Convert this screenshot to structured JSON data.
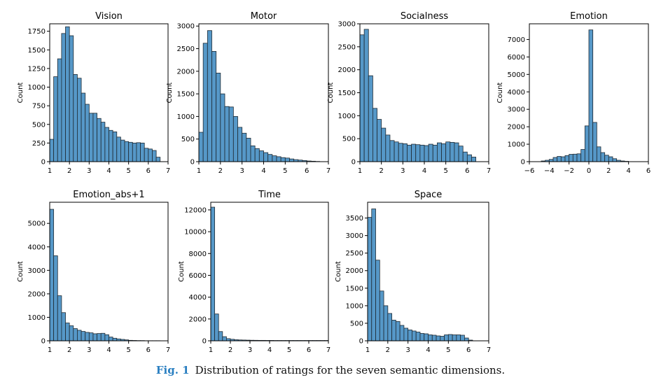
{
  "chart_data": [
    {
      "type": "bar",
      "title": "Vision",
      "ylabel": "Count",
      "xlim": [
        1,
        7
      ],
      "ylim": [
        0,
        1850
      ],
      "bin_start": 1.0,
      "bin_width": 0.2,
      "values": [
        300,
        1140,
        1380,
        1720,
        1810,
        1690,
        1170,
        1120,
        920,
        770,
        650,
        650,
        580,
        530,
        460,
        420,
        400,
        330,
        290,
        270,
        260,
        250,
        255,
        250,
        180,
        170,
        150,
        60
      ],
      "xticks": [
        1,
        2,
        3,
        4,
        5,
        6,
        7
      ],
      "yticks": [
        0,
        250,
        500,
        750,
        1000,
        1250,
        1500,
        1750
      ]
    },
    {
      "type": "bar",
      "title": "Motor",
      "ylabel": "Count",
      "xlim": [
        1,
        7
      ],
      "ylim": [
        0,
        3050
      ],
      "bin_start": 1.0,
      "bin_width": 0.2,
      "values": [
        650,
        2620,
        2900,
        2440,
        1960,
        1500,
        1220,
        1210,
        1000,
        760,
        630,
        520,
        350,
        290,
        240,
        200,
        160,
        130,
        110,
        90,
        80,
        60,
        45,
        35,
        25,
        15,
        10,
        5
      ],
      "xticks": [
        1,
        2,
        3,
        4,
        5,
        6,
        7
      ],
      "yticks": [
        0,
        500,
        1000,
        1500,
        2000,
        2500,
        3000
      ]
    },
    {
      "type": "bar",
      "title": "Socialness",
      "ylabel": "Count",
      "xlim": [
        1,
        7
      ],
      "ylim": [
        0,
        3000
      ],
      "bin_start": 1.0,
      "bin_width": 0.2,
      "values": [
        2760,
        2880,
        1870,
        1160,
        920,
        730,
        580,
        460,
        430,
        400,
        390,
        360,
        380,
        370,
        360,
        350,
        380,
        360,
        410,
        390,
        430,
        420,
        410,
        340,
        210,
        150,
        100
      ],
      "xticks": [
        1,
        2,
        3,
        4,
        5,
        6,
        7
      ],
      "yticks": [
        0,
        500,
        1000,
        1500,
        2000,
        2500,
        3000
      ]
    },
    {
      "type": "bar",
      "title": "Emotion",
      "ylabel": "Count",
      "xlim": [
        -6,
        6
      ],
      "ylim": [
        0,
        7900
      ],
      "bin_start": -4.8,
      "bin_width": 0.4,
      "values": [
        40,
        80,
        130,
        240,
        300,
        280,
        350,
        420,
        430,
        450,
        700,
        2050,
        7550,
        2250,
        850,
        520,
        370,
        280,
        170,
        80,
        40,
        20
      ],
      "xticks": [
        -6,
        -4,
        -2,
        0,
        2,
        4,
        6
      ],
      "xtick_labels": [
        "−6",
        "−4",
        "−2",
        "0",
        "2",
        "4",
        "6"
      ],
      "yticks": [
        0,
        1000,
        2000,
        3000,
        4000,
        5000,
        6000,
        7000
      ]
    },
    {
      "type": "bar",
      "title": "Emotion_abs+1",
      "ylabel": "Count",
      "xlim": [
        1,
        7
      ],
      "ylim": [
        0,
        5900
      ],
      "bin_start": 1.0,
      "bin_width": 0.2,
      "values": [
        5600,
        3620,
        1920,
        1200,
        760,
        640,
        520,
        450,
        400,
        360,
        340,
        300,
        310,
        320,
        260,
        160,
        110,
        80,
        60,
        40,
        20,
        15,
        10,
        10,
        5,
        5,
        5,
        5
      ],
      "xticks": [
        1,
        2,
        3,
        4,
        5,
        6,
        7
      ],
      "yticks": [
        0,
        1000,
        2000,
        3000,
        4000,
        5000
      ]
    },
    {
      "type": "bar",
      "title": "Time",
      "ylabel": "Count",
      "xlim": [
        1,
        7
      ],
      "ylim": [
        0,
        12700
      ],
      "bin_start": 1.0,
      "bin_width": 0.2,
      "values": [
        12250,
        2460,
        850,
        380,
        200,
        140,
        100,
        80,
        70,
        60,
        50,
        45,
        40,
        40,
        35,
        35,
        30,
        30,
        30,
        30,
        30,
        30,
        30,
        30,
        30,
        30,
        30,
        30,
        30,
        30
      ],
      "xticks": [
        1,
        2,
        3,
        4,
        5,
        6,
        7
      ],
      "yticks": [
        0,
        2000,
        4000,
        6000,
        8000,
        10000,
        12000
      ]
    },
    {
      "type": "bar",
      "title": "Space",
      "ylabel": "Count",
      "xlim": [
        1,
        7
      ],
      "ylim": [
        0,
        3950
      ],
      "bin_start": 1.0,
      "bin_width": 0.2,
      "values": [
        3520,
        3760,
        2300,
        1420,
        1000,
        780,
        590,
        550,
        440,
        360,
        310,
        280,
        250,
        210,
        200,
        170,
        160,
        140,
        130,
        170,
        180,
        170,
        170,
        160,
        80,
        20
      ],
      "xticks": [
        1,
        2,
        3,
        4,
        5,
        6,
        7
      ],
      "yticks": [
        0,
        500,
        1000,
        1500,
        2000,
        2500,
        3000,
        3500
      ]
    }
  ],
  "style": {
    "bar_fill": "#5698c8",
    "bar_edge": "#1f2a33",
    "axis_color": "#000000",
    "caption_label_color": "#2a7fc1"
  },
  "caption": {
    "label": "Fig. 1",
    "text": "Distribution of ratings for the seven semantic dimensions."
  }
}
